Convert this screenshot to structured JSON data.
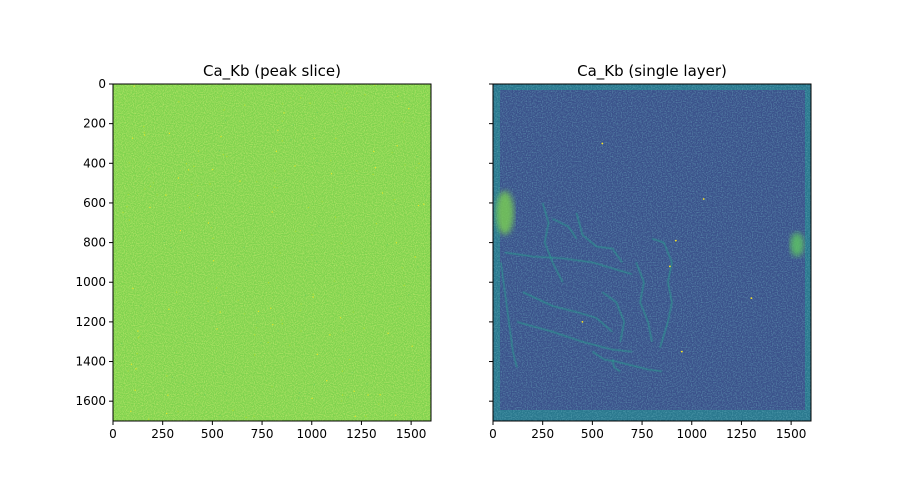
{
  "chart_data": [
    {
      "type": "heatmap",
      "title": "Ca_Kb (peak slice)",
      "xlabel": "",
      "ylabel": "",
      "xlim": [
        0,
        1600
      ],
      "ylim": [
        1700,
        0
      ],
      "x_ticks": [
        0,
        250,
        500,
        750,
        1000,
        1250,
        1500
      ],
      "x_tick_labels": [
        "0",
        "250",
        "500",
        "750",
        "1000",
        "1250",
        "1500"
      ],
      "y_ticks": [
        0,
        200,
        400,
        600,
        800,
        1000,
        1200,
        1400,
        1600
      ],
      "y_tick_labels": [
        "0",
        "200",
        "400",
        "600",
        "800",
        "1000",
        "1200",
        "1400",
        "1600"
      ],
      "colormap": "viridis",
      "dominant_color": "#7fd34e",
      "speckle_colors": [
        "#a0da39",
        "#b5de2b",
        "#fde725",
        "#6ccd5a"
      ],
      "description_level": "nearly uniform high intensity with fine noise"
    },
    {
      "type": "heatmap",
      "title": "Ca_Kb (single layer)",
      "xlabel": "",
      "ylabel": "",
      "xlim": [
        0,
        1600
      ],
      "ylim": [
        1700,
        0
      ],
      "x_ticks": [
        0,
        250,
        500,
        750,
        1000,
        1250,
        1500
      ],
      "x_tick_labels": [
        "0",
        "250",
        "500",
        "750",
        "1000",
        "1250",
        "1500"
      ],
      "y_ticks": [
        0,
        200,
        400,
        600,
        800,
        1000,
        1200,
        1400,
        1600
      ],
      "y_tick_labels": [
        "",
        "",
        "",
        "",
        "",
        "",
        "",
        "",
        ""
      ],
      "shared_y": true,
      "colormap": "viridis",
      "dominant_color": "#3b528b",
      "border_color": "#2a788e",
      "hotspots": [
        {
          "x": 60,
          "y": 650,
          "rx": 45,
          "ry": 110,
          "color": "#7ad151"
        },
        {
          "x": 1530,
          "y": 810,
          "rx": 35,
          "ry": 60,
          "color": "#5ec962"
        }
      ],
      "bright_points": [
        {
          "x": 550,
          "y": 300
        },
        {
          "x": 1060,
          "y": 580
        },
        {
          "x": 1300,
          "y": 1080
        },
        {
          "x": 920,
          "y": 790
        },
        {
          "x": 890,
          "y": 920
        },
        {
          "x": 450,
          "y": 1200
        },
        {
          "x": 950,
          "y": 1350
        }
      ],
      "structure_strokes": [
        [
          [
            60,
            850
          ],
          [
            200,
            870
          ],
          [
            350,
            880
          ],
          [
            500,
            900
          ],
          [
            700,
            960
          ]
        ],
        [
          [
            250,
            600
          ],
          [
            280,
            700
          ],
          [
            260,
            800
          ],
          [
            300,
            900
          ],
          [
            350,
            1000
          ]
        ],
        [
          [
            420,
            650
          ],
          [
            450,
            760
          ],
          [
            520,
            820
          ],
          [
            600,
            830
          ],
          [
            650,
            900
          ]
        ],
        [
          [
            800,
            780
          ],
          [
            860,
            800
          ],
          [
            900,
            900
          ],
          [
            880,
            1000
          ],
          [
            900,
            1100
          ],
          [
            880,
            1200
          ],
          [
            840,
            1330
          ]
        ],
        [
          [
            720,
            900
          ],
          [
            760,
            1000
          ],
          [
            740,
            1100
          ],
          [
            780,
            1200
          ],
          [
            800,
            1300
          ]
        ],
        [
          [
            120,
            1200
          ],
          [
            300,
            1250
          ],
          [
            450,
            1300
          ],
          [
            600,
            1340
          ],
          [
            700,
            1350
          ]
        ],
        [
          [
            150,
            1050
          ],
          [
            300,
            1120
          ],
          [
            420,
            1150
          ],
          [
            520,
            1180
          ],
          [
            600,
            1250
          ]
        ],
        [
          [
            40,
            900
          ],
          [
            60,
            1050
          ],
          [
            80,
            1200
          ],
          [
            100,
            1350
          ],
          [
            120,
            1430
          ]
        ],
        [
          [
            500,
            1350
          ],
          [
            560,
            1390
          ],
          [
            620,
            1400
          ],
          [
            700,
            1420
          ],
          [
            780,
            1440
          ],
          [
            850,
            1450
          ]
        ],
        [
          [
            550,
            1050
          ],
          [
            620,
            1100
          ],
          [
            660,
            1200
          ],
          [
            640,
            1300
          ]
        ],
        [
          [
            300,
            680
          ],
          [
            380,
            720
          ],
          [
            420,
            780
          ]
        ],
        [
          [
            600,
            1390
          ],
          [
            610,
            1430
          ],
          [
            640,
            1450
          ]
        ]
      ]
    }
  ]
}
